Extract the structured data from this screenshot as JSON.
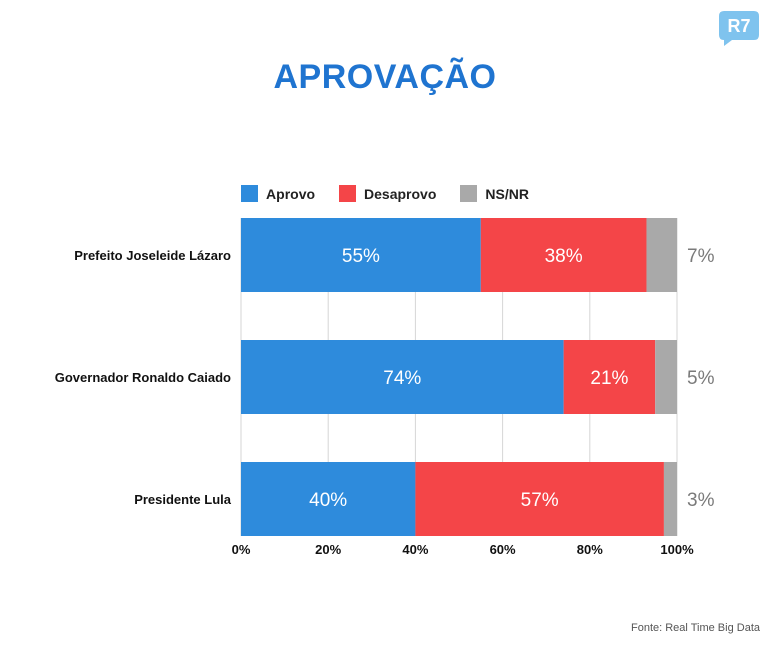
{
  "title": "APROVAÇÃO",
  "logo_text": "R7",
  "source": "Fonte: Real Time Big Data",
  "colors": {
    "title": "#1f74d0",
    "aprovo": "#2e8bdc",
    "desaprovo": "#f44548",
    "nsnr": "#a9a9a9",
    "logo": "#7fc3ee"
  },
  "chart_data": {
    "type": "bar",
    "orientation": "horizontal",
    "stacked": true,
    "categories": [
      "Prefeito Joseleide Lázaro",
      "Governador Ronaldo Caiado",
      "Presidente Lula"
    ],
    "series": [
      {
        "name": "Aprovo",
        "values": [
          55,
          74,
          40
        ],
        "labels": [
          "55%",
          "74%",
          "40%"
        ]
      },
      {
        "name": "Desaprovo",
        "values": [
          38,
          21,
          57
        ],
        "labels": [
          "38%",
          "21%",
          "57%"
        ]
      },
      {
        "name": "NS/NR",
        "values": [
          7,
          5,
          3
        ],
        "labels": [
          "7%",
          "5%",
          "3%"
        ]
      }
    ],
    "x_ticks": [
      "0%",
      "20%",
      "40%",
      "60%",
      "80%",
      "100%"
    ],
    "x_tick_values": [
      0,
      20,
      40,
      60,
      80,
      100
    ],
    "xlim": [
      0,
      100
    ],
    "grid": true,
    "legend": "top"
  }
}
